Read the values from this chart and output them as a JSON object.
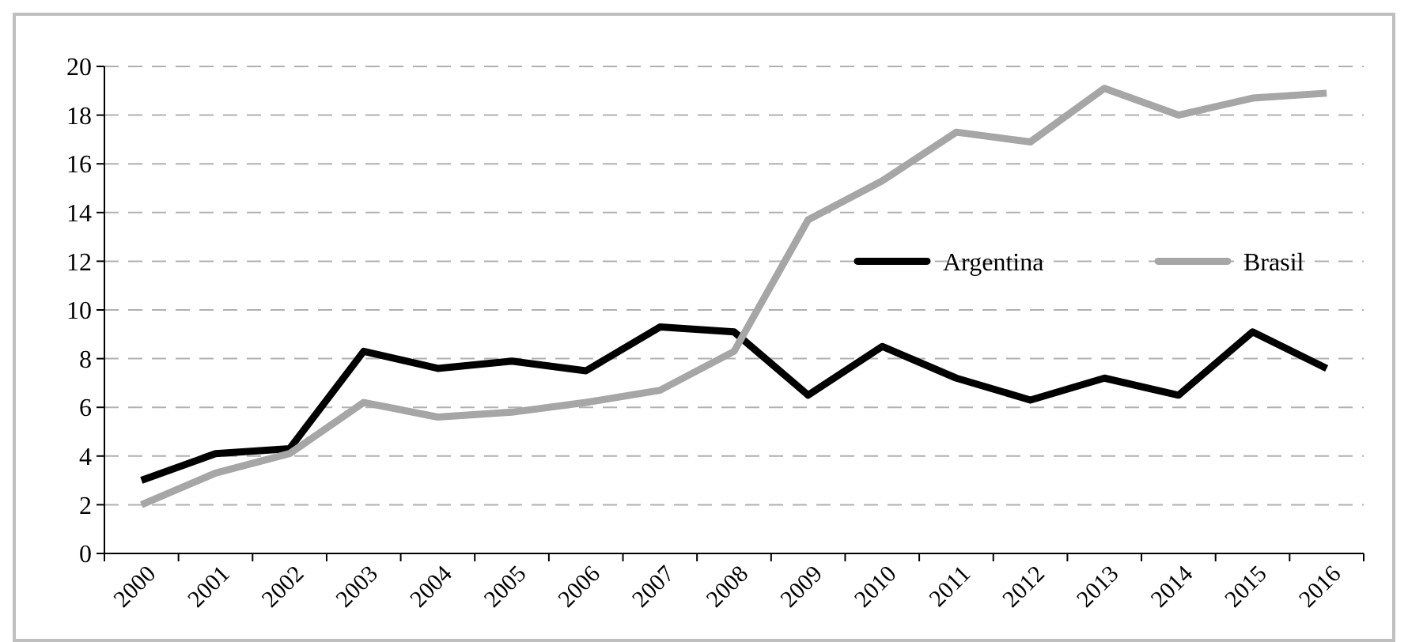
{
  "chart_data": {
    "type": "line",
    "categories": [
      "2000",
      "2001",
      "2002",
      "2003",
      "2004",
      "2005",
      "2006",
      "2007",
      "2008",
      "2009",
      "2010",
      "2011",
      "2012",
      "2013",
      "2014",
      "2015",
      "2016"
    ],
    "series": [
      {
        "name": "Argentina",
        "color": "#000000",
        "values": [
          3.0,
          4.1,
          4.3,
          8.3,
          7.6,
          7.9,
          7.5,
          9.3,
          9.1,
          6.5,
          8.5,
          7.2,
          6.3,
          7.2,
          6.5,
          9.1,
          7.6
        ]
      },
      {
        "name": "Brasil",
        "color": "#a6a6a6",
        "values": [
          2.0,
          3.3,
          4.1,
          6.2,
          5.6,
          5.8,
          6.2,
          6.7,
          8.3,
          13.7,
          15.3,
          17.3,
          16.9,
          19.1,
          18.0,
          18.7,
          18.9
        ]
      }
    ],
    "ylim": [
      0,
      20
    ],
    "yticks": [
      0,
      2,
      4,
      6,
      8,
      10,
      12,
      14,
      16,
      18,
      20
    ],
    "grid": "y",
    "legend": "right",
    "marker": "none",
    "line_style": "solid"
  }
}
